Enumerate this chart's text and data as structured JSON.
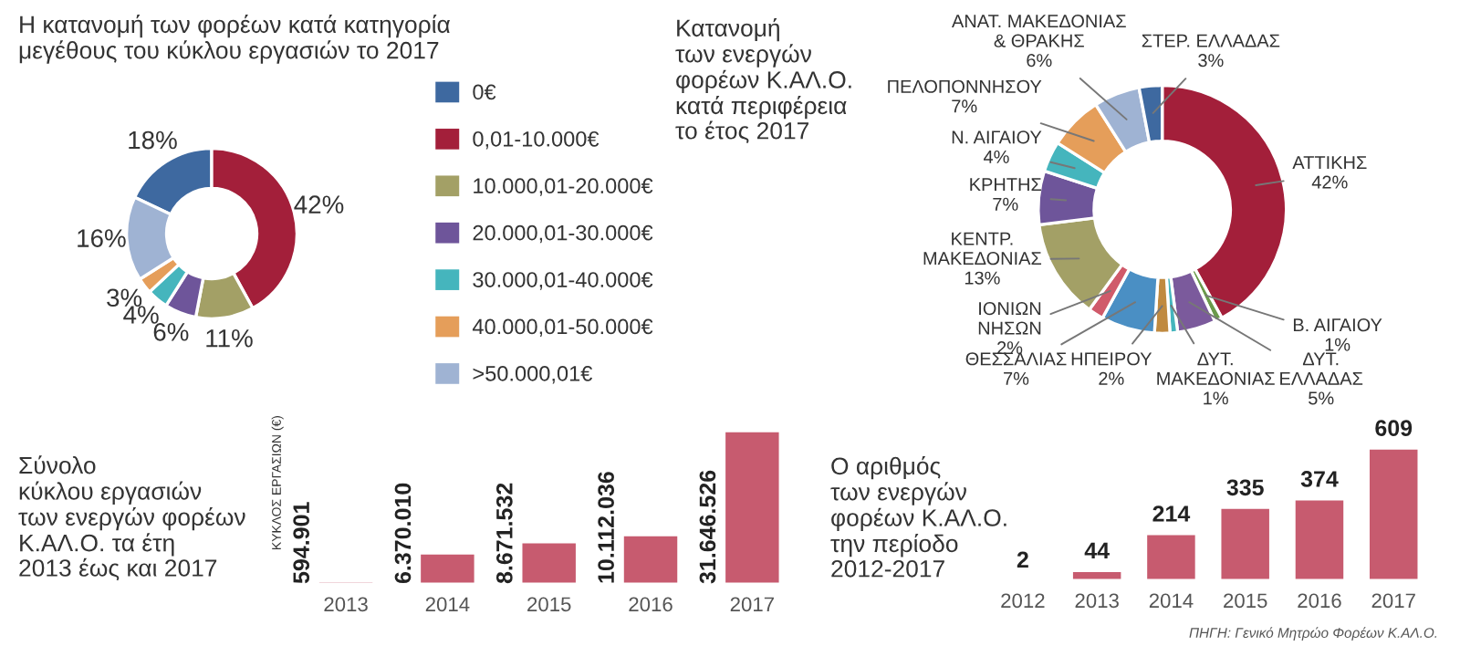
{
  "chart_data": [
    {
      "type": "donut",
      "title": "Η κατανομή των φορέων κατά κατηγορία\nμεγέθους του κύκλου εργασιών το 2017",
      "categories": [
        "0€",
        "0,01-10.000€",
        "10.000,01-20.000€",
        "20.000,01-30.000€",
        "30.000,01-40.000€",
        "40.000,01-50.000€",
        ">50.000,01€"
      ],
      "values": [
        18,
        42,
        11,
        6,
        4,
        3,
        16
      ],
      "value_labels": [
        "18%",
        "42%",
        "11%",
        "6%",
        "4%",
        "3%",
        "16%"
      ],
      "colors": [
        "#3e69a0",
        "#a31f3a",
        "#a3a066",
        "#6e559a",
        "#45b5bd",
        "#e59e5a",
        "#9fb3d3"
      ],
      "legend": "right"
    },
    {
      "type": "donut",
      "title": "Κατανομή\nτων ενεργών\nφορέων Κ.ΑΛ.Ο.\nκατά περιφέρεια\nτο έτος 2017",
      "categories": [
        "ΑΤΤΙΚΗΣ",
        "Β. ΑΙΓΑΙΟΥ",
        "ΔΥΤ.\nΕΛΛΑΔΑΣ",
        "ΔΥΤ.\nΜΑΚΕΔΟΝΙΑΣ",
        "ΗΠΕΙΡΟΥ",
        "ΘΕΣΣΑΛΙΑΣ",
        "ΙΟΝΙΩΝ\nΝΗΣΩΝ",
        "ΚΕΝΤΡ.\nΜΑΚΕΔΟΝΙΑΣ",
        "ΚΡΗΤΗΣ",
        "Ν. ΑΙΓΑΙΟΥ",
        "ΠΕΛΟΠΟΝΝΗΣΟΥ",
        "ΑΝΑΤ. ΜΑΚΕΔΟΝΙΑΣ\n& ΘΡΑΚΗΣ",
        "ΣΤΕΡ. ΕΛΛΑΔΑΣ"
      ],
      "values": [
        42,
        1,
        5,
        1,
        2,
        7,
        2,
        13,
        7,
        4,
        7,
        6,
        3
      ],
      "value_labels": [
        "42%",
        "1%",
        "5%",
        "1%",
        "2%",
        "7%",
        "2%",
        "13%",
        "7%",
        "4%",
        "7%",
        "6%",
        "3%"
      ],
      "colors": [
        "#a31f3a",
        "#6a9a4a",
        "#7b5a9c",
        "#45b5bd",
        "#c08a40",
        "#4a8fc4",
        "#d05a6a",
        "#a3a066",
        "#6e559a",
        "#45b5bd",
        "#e59e5a",
        "#9fb3d3",
        "#3e69a0"
      ]
    },
    {
      "type": "bar",
      "title": "Σύνολο\nκύκλου εργασιών\nτων ενεργών φορέων\nΚ.ΑΛ.Ο. τα έτη\n2013 έως και 2017",
      "ylabel": "ΚΥΚΛΟΣ ΕΡΓΑΣΙΩΝ (€)",
      "categories": [
        "2013",
        "2014",
        "2015",
        "2016",
        "2017"
      ],
      "values": [
        594901,
        6370010,
        8671532,
        10112036,
        31646526
      ],
      "value_labels": [
        "594.901",
        "6.370.010",
        "8.671.532",
        "10.112.036",
        "31.646.526"
      ],
      "color": "#c75b6f",
      "tick_labels": "x"
    },
    {
      "type": "bar",
      "title": "Ο αριθμός\nτων ενεργών\nφορέων Κ.ΑΛ.Ο.\nτην περίοδο\n2012-2017",
      "categories": [
        "2012",
        "2013",
        "2014",
        "2015",
        "2016",
        "2017"
      ],
      "values": [
        2,
        44,
        214,
        335,
        374,
        609
      ],
      "data_labels": true,
      "color": "#c75b6f",
      "tick_labels": "x",
      "annotations": [
        "ΠΗΓΗ: Γενικό Μητρώο Φορέων Κ.ΑΛ.Ο."
      ]
    }
  ]
}
